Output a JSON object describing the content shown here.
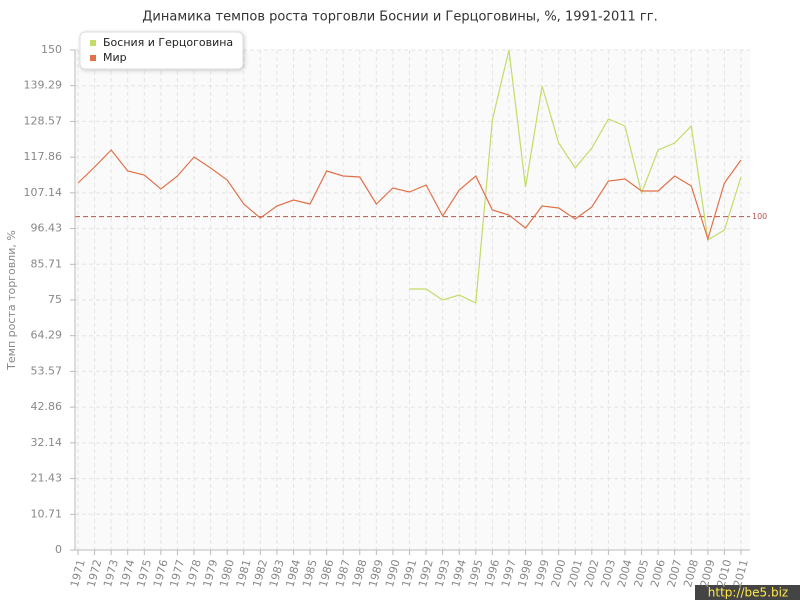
{
  "chart_data": {
    "type": "line",
    "title": "Динамика темпов роста торговли Боснии и Герцоговины, %, 1991-2011 гг.",
    "y_label": "Темп роста торговли, %",
    "categories": [
      "1971",
      "1972",
      "1973",
      "1974",
      "1975",
      "1976",
      "1977",
      "1978",
      "1979",
      "1980",
      "1981",
      "1982",
      "1983",
      "1984",
      "1985",
      "1986",
      "1987",
      "1988",
      "1989",
      "1990",
      "1991",
      "1992",
      "1993",
      "1994",
      "1995",
      "1996",
      "1997",
      "1998",
      "1999",
      "2000",
      "2001",
      "2002",
      "2003",
      "2004",
      "2005",
      "2006",
      "2007",
      "2008",
      "2009",
      "2010",
      "2011"
    ],
    "series": [
      {
        "name": "Босния и Герцоговина",
        "color": "#c2dc68",
        "values": [
          null,
          null,
          null,
          null,
          null,
          null,
          null,
          null,
          null,
          null,
          null,
          null,
          null,
          null,
          null,
          null,
          null,
          null,
          null,
          null,
          78.3,
          78.3,
          75,
          76.5,
          74.1,
          129,
          150,
          108.9,
          139.2,
          122.1,
          114.6,
          120.6,
          129.3,
          127.2,
          107.1,
          120,
          122.1,
          127.2,
          93,
          96,
          111.9
        ]
      },
      {
        "name": "Мир",
        "color": "#e0714b",
        "values": [
          110.1,
          114.9,
          120,
          113.7,
          112.5,
          108.3,
          112.2,
          117.9,
          114.6,
          111,
          103.8,
          99.6,
          103.2,
          105,
          103.8,
          113.7,
          112.2,
          111.9,
          103.8,
          108.6,
          107.4,
          109.5,
          100.2,
          108,
          112.2,
          102,
          100.5,
          96.6,
          103.2,
          102.6,
          99.3,
          102.9,
          110.7,
          111.3,
          107.7,
          107.7,
          112.2,
          109.2,
          93.3,
          110.1,
          117
        ]
      }
    ],
    "ylim": [
      0,
      150
    ],
    "yticks": [
      0,
      10.71,
      21.43,
      32.14,
      42.86,
      53.57,
      64.29,
      75,
      85.71,
      96.43,
      107.14,
      117.86,
      128.57,
      139.29,
      150
    ],
    "reference_line": 100,
    "reference_color": "#b5534f",
    "grid": true,
    "legend": "top-left",
    "watermark": "http://be5.biz"
  }
}
